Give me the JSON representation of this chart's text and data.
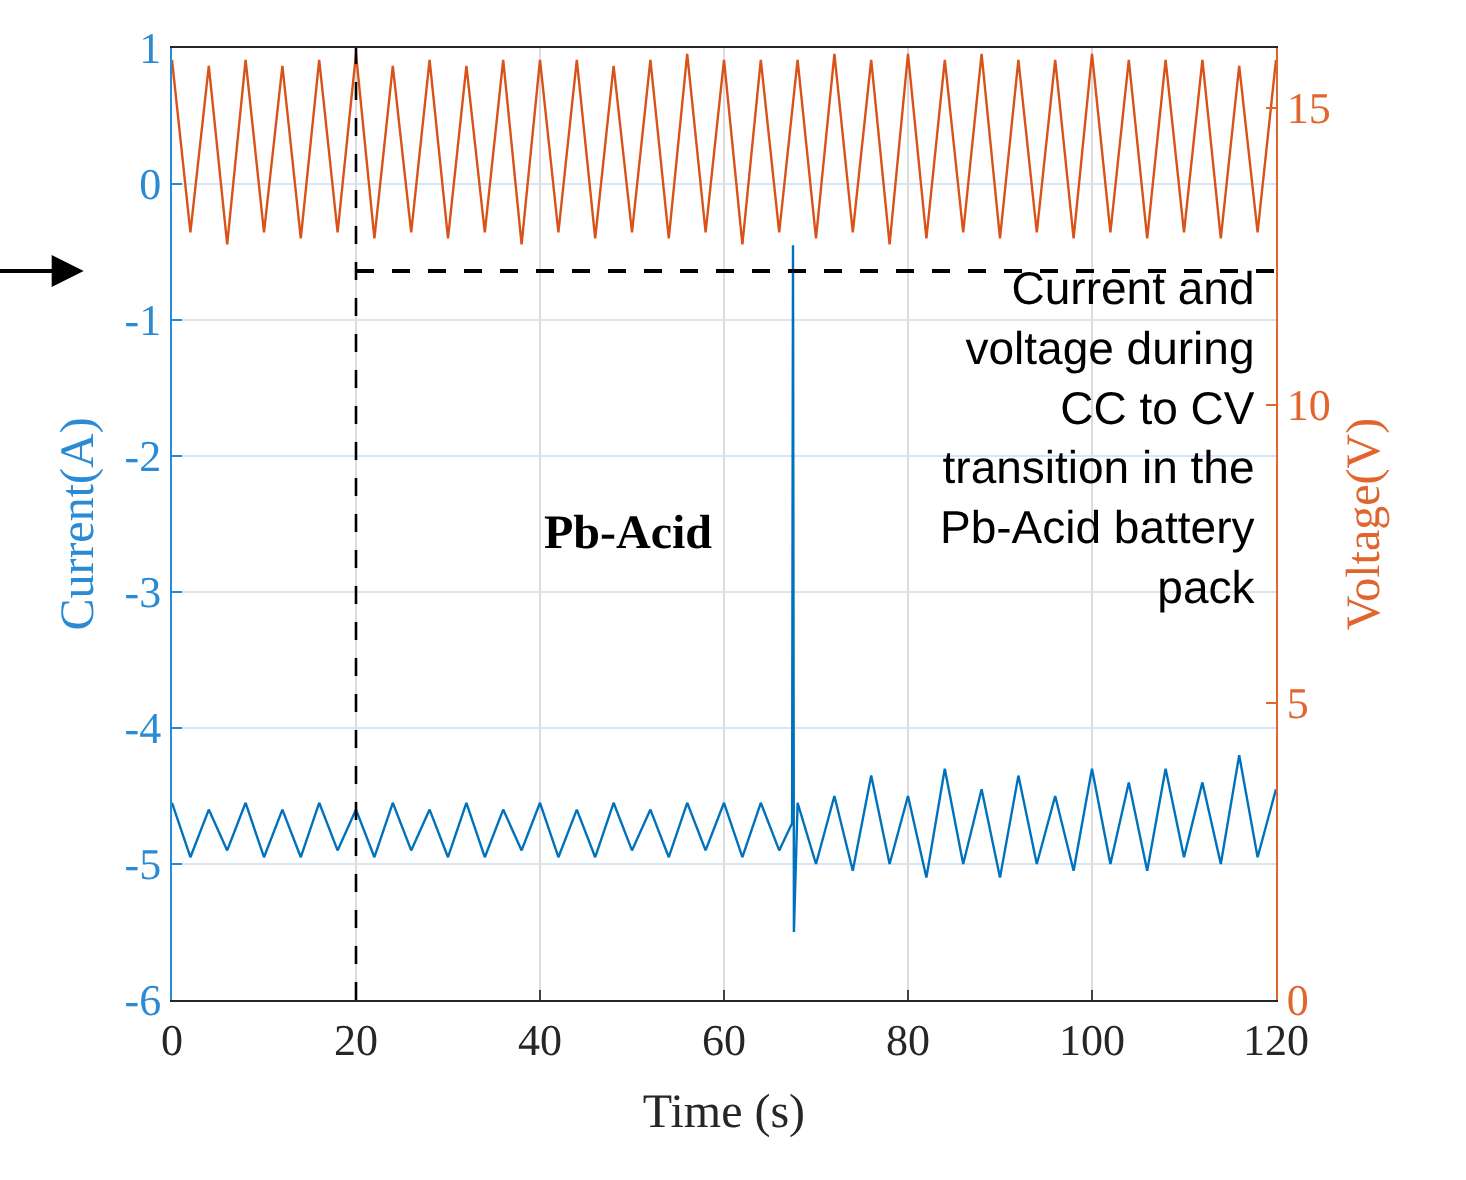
{
  "chart_data": {
    "type": "line",
    "xlabel": "Time (s)",
    "ylabel": "Current(A)",
    "y2label": "Voltage(V)",
    "xlim": [
      0,
      120
    ],
    "xticks": [
      0,
      20,
      40,
      60,
      80,
      100,
      120
    ],
    "ylim": [
      -6,
      1
    ],
    "yticks": [
      -6,
      -5,
      -4,
      -3,
      -2,
      -1,
      0,
      1
    ],
    "y2lim": [
      0,
      16
    ],
    "y2ticks": [
      0,
      5,
      10,
      15
    ],
    "grid": true,
    "line_style": "solid",
    "series": [
      {
        "color": "#d95319",
        "axis": "y2",
        "x": [
          0,
          2,
          4,
          6,
          8,
          10,
          12,
          14,
          16,
          18,
          20,
          22,
          24,
          26,
          28,
          30,
          32,
          34,
          36,
          38,
          40,
          42,
          44,
          46,
          48,
          50,
          52,
          54,
          56,
          58,
          60,
          62,
          64,
          66,
          68,
          70,
          72,
          74,
          76,
          78,
          80,
          82,
          84,
          86,
          88,
          90,
          92,
          94,
          96,
          98,
          100,
          102,
          104,
          106,
          108,
          110,
          112,
          114,
          116,
          118,
          120
        ],
        "values": [
          15.8,
          12.9,
          15.7,
          12.7,
          15.8,
          12.9,
          15.7,
          12.8,
          15.8,
          12.9,
          15.9,
          12.8,
          15.7,
          12.9,
          15.8,
          12.8,
          15.7,
          12.9,
          15.8,
          12.7,
          15.8,
          12.9,
          15.8,
          12.8,
          15.7,
          12.9,
          15.8,
          12.8,
          15.9,
          12.9,
          15.8,
          12.7,
          15.8,
          12.9,
          15.8,
          12.8,
          15.9,
          12.9,
          15.8,
          12.7,
          15.9,
          12.8,
          15.8,
          12.9,
          15.9,
          12.8,
          15.8,
          12.9,
          15.8,
          12.8,
          15.9,
          12.9,
          15.8,
          12.8,
          15.8,
          12.9,
          15.8,
          12.8,
          15.7,
          12.9,
          15.8
        ]
      },
      {
        "color": "#0072bd",
        "x": [
          0,
          2,
          4,
          6,
          8,
          10,
          12,
          14,
          16,
          18,
          20,
          22,
          24,
          26,
          28,
          30,
          32,
          34,
          36,
          38,
          40,
          42,
          44,
          46,
          48,
          50,
          52,
          54,
          56,
          58,
          60,
          62,
          64,
          66,
          67.4,
          67.5,
          67.6,
          68,
          70,
          72,
          74,
          76,
          78,
          80,
          82,
          84,
          86,
          88,
          90,
          92,
          94,
          96,
          98,
          100,
          102,
          104,
          106,
          108,
          110,
          112,
          114,
          116,
          118,
          120
        ],
        "values": [
          -4.55,
          -4.95,
          -4.6,
          -4.9,
          -4.55,
          -4.95,
          -4.6,
          -4.95,
          -4.55,
          -4.9,
          -4.6,
          -4.95,
          -4.55,
          -4.9,
          -4.6,
          -4.95,
          -4.55,
          -4.95,
          -4.6,
          -4.9,
          -4.55,
          -4.95,
          -4.6,
          -4.95,
          -4.55,
          -4.9,
          -4.6,
          -4.95,
          -4.55,
          -4.9,
          -4.55,
          -4.95,
          -4.55,
          -4.9,
          -4.7,
          -0.45,
          -5.5,
          -4.55,
          -5.0,
          -4.5,
          -5.05,
          -4.35,
          -5.0,
          -4.5,
          -5.1,
          -4.3,
          -5.0,
          -4.45,
          -5.1,
          -4.35,
          -5.0,
          -4.5,
          -5.05,
          -4.3,
          -5.0,
          -4.4,
          -5.05,
          -4.3,
          -4.95,
          -4.4,
          -5.0,
          -4.2,
          -4.95,
          -4.45
        ]
      }
    ],
    "ref_lines": [
      {
        "axis": "x",
        "value": 20,
        "color": "#000000",
        "line_style": "dashed"
      },
      {
        "axis": "y",
        "value": -0.64,
        "color": "#000000",
        "line_style": "dashed"
      }
    ],
    "annotations": [
      "Pb-Acid",
      "Current and\nvoltage during\nCC to CV\ntransition in the\nPb-Acid battery\npack"
    ]
  }
}
